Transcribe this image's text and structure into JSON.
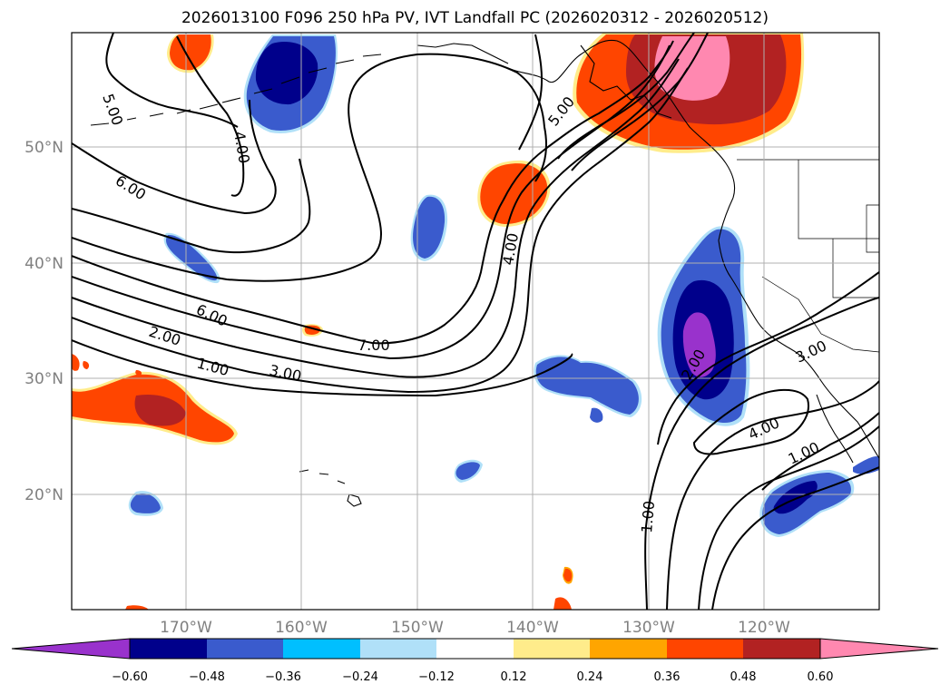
{
  "title": "2026013100 F096 250 hPa PV, IVT Landfall PC (2026020312 - 2026020512)",
  "axes": {
    "lat_labels": [
      "50°N",
      "40°N",
      "30°N",
      "20°N"
    ],
    "lon_labels": [
      "170°W",
      "160°W",
      "150°W",
      "140°W",
      "130°W",
      "120°W"
    ]
  },
  "contour_labels": [
    "5.00",
    "4.00",
    "6.00",
    "5.00",
    "4.00",
    "6.00",
    "2.00",
    "1.00",
    "3.00",
    "7.00",
    "2.00",
    "3.00",
    "4.00",
    "1.00",
    "1.00"
  ],
  "colorbar": {
    "colors": [
      "#9932cc",
      "#00008b",
      "#3a5bcd",
      "#00bfff",
      "#b0e0f8",
      "#ffffff",
      "#ffec8b",
      "#ffa500",
      "#ff4500",
      "#b22222",
      "#ff88b0"
    ],
    "tick_labels": [
      "−0.60",
      "−0.48",
      "−0.36",
      "−0.24",
      "−0.12",
      "0.12",
      "0.24",
      "0.36",
      "0.48",
      "0.60"
    ]
  },
  "colors": {
    "grid": "#b0b0b0",
    "contour": "#000000",
    "coast": "#000000"
  }
}
